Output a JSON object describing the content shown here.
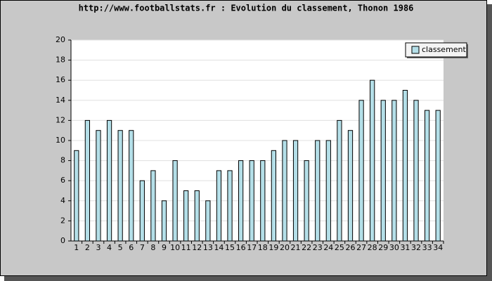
{
  "chart_data": {
    "type": "bar",
    "title": "http://www.footballstats.fr : Evolution du classement, Thonon 1986",
    "categories": [
      "1",
      "2",
      "3",
      "4",
      "5",
      "6",
      "7",
      "8",
      "9",
      "10",
      "11",
      "12",
      "13",
      "14",
      "15",
      "16",
      "17",
      "18",
      "19",
      "20",
      "21",
      "22",
      "23",
      "24",
      "25",
      "26",
      "27",
      "28",
      "29",
      "30",
      "31",
      "32",
      "33",
      "34"
    ],
    "series": [
      {
        "name": "classement",
        "color": "#b4dfe8",
        "values": [
          9,
          12,
          11,
          12,
          11,
          11,
          6,
          7,
          4,
          8,
          5,
          5,
          4,
          7,
          7,
          8,
          8,
          8,
          9,
          10,
          10,
          8,
          10,
          10,
          12,
          11,
          14,
          16,
          14,
          14,
          15,
          14,
          13,
          13
        ]
      }
    ],
    "ylim": [
      0,
      20
    ],
    "yticks": [
      0,
      2,
      4,
      6,
      8,
      10,
      12,
      14,
      16,
      18,
      20
    ],
    "grid": true,
    "legend": "top-right"
  }
}
